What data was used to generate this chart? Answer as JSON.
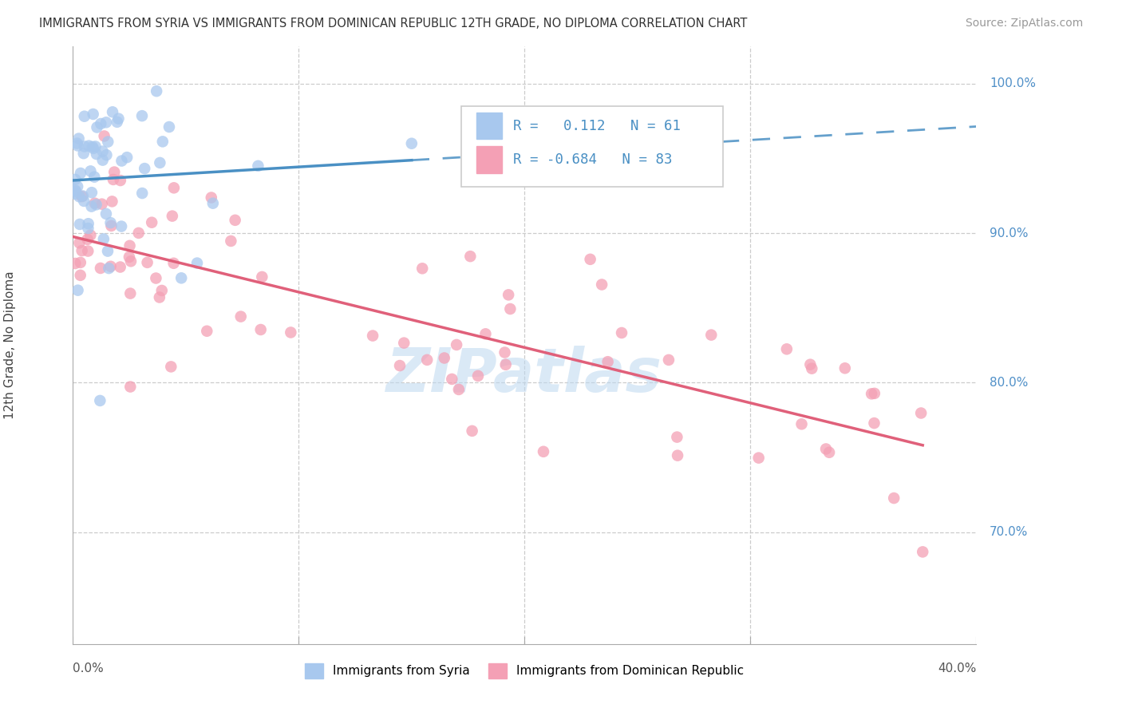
{
  "title": "IMMIGRANTS FROM SYRIA VS IMMIGRANTS FROM DOMINICAN REPUBLIC 12TH GRADE, NO DIPLOMA CORRELATION CHART",
  "source": "Source: ZipAtlas.com",
  "ylabel_label": "12th Grade, No Diploma",
  "legend_label1": "Immigrants from Syria",
  "legend_label2": "Immigrants from Dominican Republic",
  "R1": 0.112,
  "N1": 61,
  "R2": -0.684,
  "N2": 83,
  "blue_color": "#A8C8EE",
  "pink_color": "#F4A0B5",
  "blue_line_color": "#4A90C4",
  "pink_line_color": "#E0607A",
  "watermark": "ZIPatlas",
  "xmin": 0.0,
  "xmax": 0.4,
  "ymin": 0.625,
  "ymax": 1.025,
  "ytick_positions": [
    0.7,
    0.8,
    0.9,
    1.0
  ],
  "ytick_labels": [
    "70.0%",
    "80.0%",
    "90.0%",
    "100.0%"
  ],
  "xtick_positions": [
    0.1,
    0.2,
    0.3
  ],
  "grid_color": "#CCCCCC",
  "axis_color": "#AAAAAA",
  "right_label_color": "#5090C8",
  "watermark_color": "#BDD8F0",
  "title_color": "#333333",
  "source_color": "#999999"
}
